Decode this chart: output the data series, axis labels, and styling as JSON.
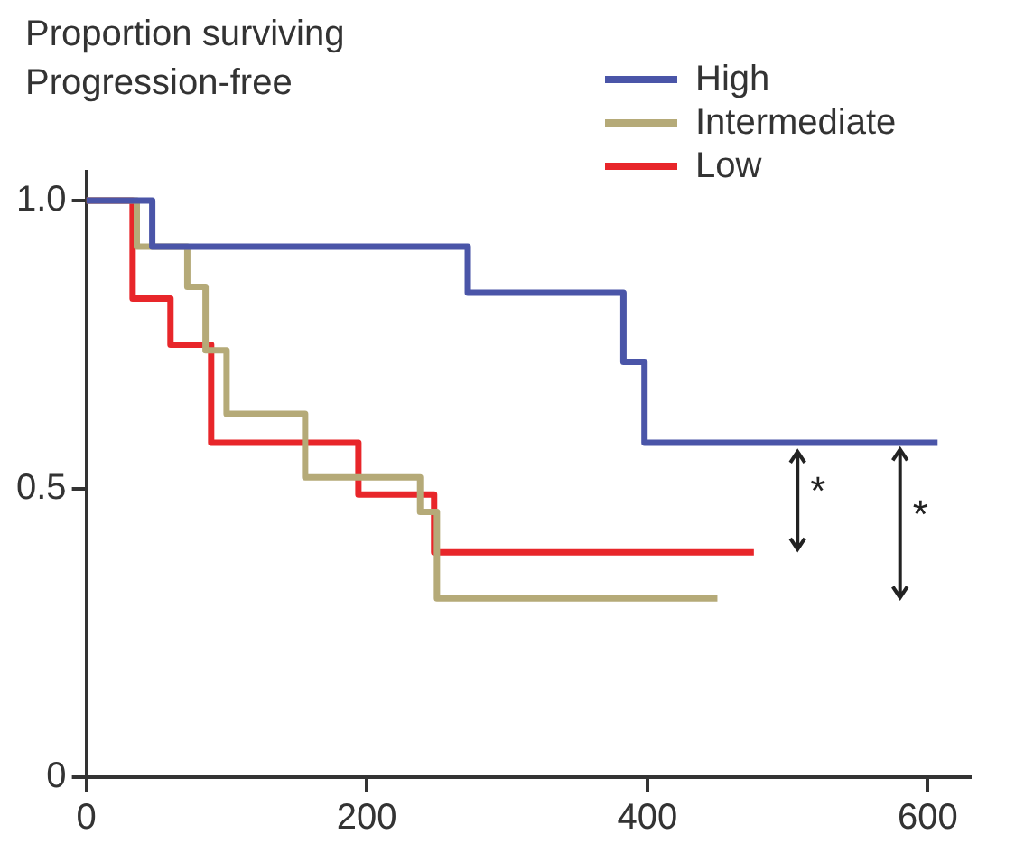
{
  "chart_data": {
    "type": "step",
    "ylabel": "Proportion surviving\nProgression-free",
    "xlim": [
      0,
      630
    ],
    "ylim": [
      0,
      1.05
    ],
    "xticks": [
      0,
      200,
      400,
      600
    ],
    "yticks": [
      0,
      {
        "value": 0.5,
        "label": "0.5"
      },
      {
        "value": 1,
        "label": "1.0"
      }
    ],
    "grid": false,
    "legend": "top",
    "marker": "none",
    "line_style": "solid",
    "series": [
      {
        "name": "High",
        "color": "#4a55a8",
        "x": [
          0,
          47,
          272,
          383,
          398,
          607
        ],
        "values": [
          1,
          0.92,
          0.84,
          0.72,
          0.58,
          0.58
        ]
      },
      {
        "name": "Intermediate",
        "color": "#b5aa78",
        "x": [
          0,
          36,
          72,
          85,
          100,
          156,
          238,
          250,
          450
        ],
        "values": [
          1,
          0.92,
          0.85,
          0.74,
          0.63,
          0.52,
          0.46,
          0.31,
          0.31
        ]
      },
      {
        "name": "Low",
        "color": "#e8262a",
        "x": [
          0,
          33,
          60,
          89,
          194,
          248,
          476
        ],
        "values": [
          1,
          0.83,
          0.75,
          0.58,
          0.49,
          0.39,
          0.39
        ]
      }
    ],
    "annotations": [
      "*",
      "*"
    ]
  }
}
